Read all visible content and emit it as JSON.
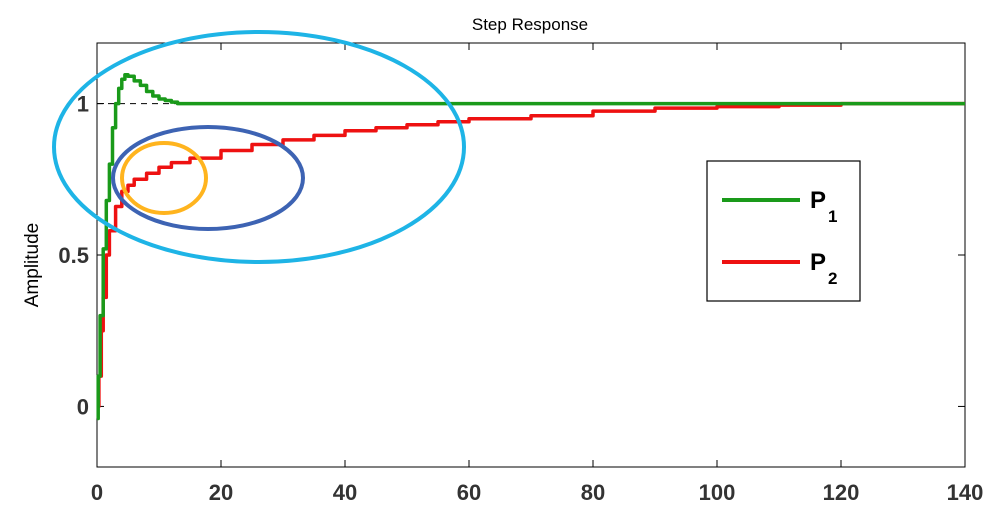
{
  "chart_data": {
    "type": "line",
    "title": "Step Response",
    "xlabel": "",
    "ylabel": "Amplitude",
    "xlim": [
      0,
      140
    ],
    "ylim": [
      -0.2,
      1.2
    ],
    "x_ticks": [
      0,
      20,
      40,
      60,
      80,
      100,
      120,
      140
    ],
    "y_ticks": [
      0,
      0.5,
      1
    ],
    "y_tick_labels": [
      "0",
      "0.5",
      "1"
    ],
    "reference_line": {
      "y": 1,
      "style": "dashed",
      "color": "#000000"
    },
    "legend": {
      "placement": "right"
    },
    "series": [
      {
        "name": "P",
        "subscript": "1",
        "color": "#1a9a1a",
        "x": [
          0,
          0.2,
          0.5,
          1,
          1.5,
          2,
          2.5,
          3,
          3.5,
          4,
          4.5,
          5,
          6,
          7,
          8,
          9,
          10,
          11,
          12,
          13,
          14,
          20,
          40,
          60,
          80,
          100,
          120,
          140
        ],
        "y": [
          -0.04,
          0.1,
          0.3,
          0.52,
          0.68,
          0.8,
          0.92,
          1.0,
          1.05,
          1.08,
          1.095,
          1.09,
          1.075,
          1.06,
          1.04,
          1.025,
          1.015,
          1.01,
          1.005,
          1.0,
          1.0,
          1.0,
          1.0,
          1.0,
          1.0,
          1.0,
          1.0,
          1.0
        ]
      },
      {
        "name": "P",
        "subscript": "2",
        "color": "#ee1111",
        "x": [
          0,
          0.3,
          0.7,
          1,
          1.5,
          2,
          3,
          4,
          5,
          6,
          8,
          10,
          12,
          15,
          20,
          25,
          30,
          35,
          40,
          45,
          50,
          55,
          60,
          70,
          80,
          90,
          100,
          110,
          120,
          130,
          140
        ],
        "y": [
          0.0,
          0.1,
          0.25,
          0.36,
          0.5,
          0.58,
          0.66,
          0.71,
          0.73,
          0.75,
          0.77,
          0.79,
          0.805,
          0.82,
          0.845,
          0.865,
          0.88,
          0.895,
          0.91,
          0.92,
          0.93,
          0.94,
          0.95,
          0.96,
          0.975,
          0.985,
          0.99,
          0.995,
          1.0,
          1.0,
          1.0
        ]
      }
    ]
  }
}
